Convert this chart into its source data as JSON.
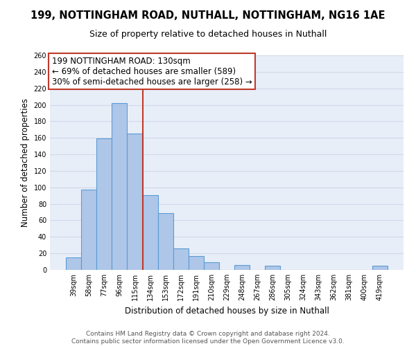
{
  "title": "199, NOTTINGHAM ROAD, NUTHALL, NOTTINGHAM, NG16 1AE",
  "subtitle": "Size of property relative to detached houses in Nuthall",
  "xlabel": "Distribution of detached houses by size in Nuthall",
  "ylabel": "Number of detached properties",
  "bar_labels": [
    "39sqm",
    "58sqm",
    "77sqm",
    "96sqm",
    "115sqm",
    "134sqm",
    "153sqm",
    "172sqm",
    "191sqm",
    "210sqm",
    "229sqm",
    "248sqm",
    "267sqm",
    "286sqm",
    "305sqm",
    "324sqm",
    "343sqm",
    "362sqm",
    "381sqm",
    "400sqm",
    "419sqm"
  ],
  "bar_values": [
    15,
    97,
    159,
    202,
    165,
    91,
    69,
    26,
    17,
    9,
    0,
    6,
    0,
    5,
    0,
    0,
    0,
    0,
    0,
    0,
    5
  ],
  "bar_color": "#aec6e8",
  "bar_edge_color": "#5b9bd5",
  "vline_color": "#c0392b",
  "annotation_text": "199 NOTTINGHAM ROAD: 130sqm\n← 69% of detached houses are smaller (589)\n30% of semi-detached houses are larger (258) →",
  "annotation_box_color": "#ffffff",
  "annotation_box_edge_color": "#c0392b",
  "ylim": [
    0,
    260
  ],
  "yticks": [
    0,
    20,
    40,
    60,
    80,
    100,
    120,
    140,
    160,
    180,
    200,
    220,
    240,
    260
  ],
  "grid_color": "#d0d8e8",
  "background_color": "#e8eef8",
  "footer_line1": "Contains HM Land Registry data © Crown copyright and database right 2024.",
  "footer_line2": "Contains public sector information licensed under the Open Government Licence v3.0.",
  "title_fontsize": 10.5,
  "subtitle_fontsize": 9,
  "axis_label_fontsize": 8.5,
  "tick_fontsize": 7,
  "annotation_fontsize": 8.5,
  "footer_fontsize": 6.5,
  "vline_pos": 4.5
}
